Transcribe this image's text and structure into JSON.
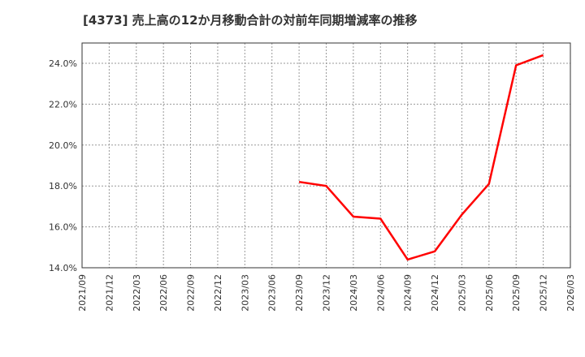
{
  "title": "[4373]  売上高の12か月移動合計の対前年同期増減率の推移",
  "colors": {
    "line": "#ff0000",
    "grid": "#999999",
    "axis": "#333333",
    "background": "#ffffff"
  },
  "chart_data": {
    "type": "line",
    "title": "[4373]  売上高の12か月移動合計の対前年同期増減率の推移",
    "xlabel": "",
    "ylabel": "",
    "ylim": [
      14.0,
      25.0
    ],
    "yticks": [
      14.0,
      16.0,
      18.0,
      20.0,
      22.0,
      24.0
    ],
    "ytick_labels": [
      "14.0%",
      "16.0%",
      "18.0%",
      "20.0%",
      "22.0%",
      "24.0%"
    ],
    "x_tick_labels": [
      "2021/09",
      "2021/12",
      "2022/03",
      "2022/06",
      "2022/09",
      "2022/12",
      "2023/03",
      "2023/06",
      "2023/09",
      "2023/12",
      "2024/03",
      "2024/06",
      "2024/09",
      "2024/12",
      "2025/03",
      "2025/06",
      "2025/09",
      "2025/12",
      "2026/03"
    ],
    "grid": true,
    "legend": null,
    "series": [
      {
        "name": "売上高12か月移動合計 対前年同期増減率",
        "x": [
          "2023/09",
          "2023/12",
          "2024/03",
          "2024/06",
          "2024/09",
          "2024/12",
          "2025/03",
          "2025/06",
          "2025/09",
          "2025/12"
        ],
        "values": [
          18.2,
          18.0,
          16.5,
          16.4,
          14.4,
          14.8,
          16.6,
          18.1,
          23.9,
          24.4
        ]
      }
    ]
  }
}
